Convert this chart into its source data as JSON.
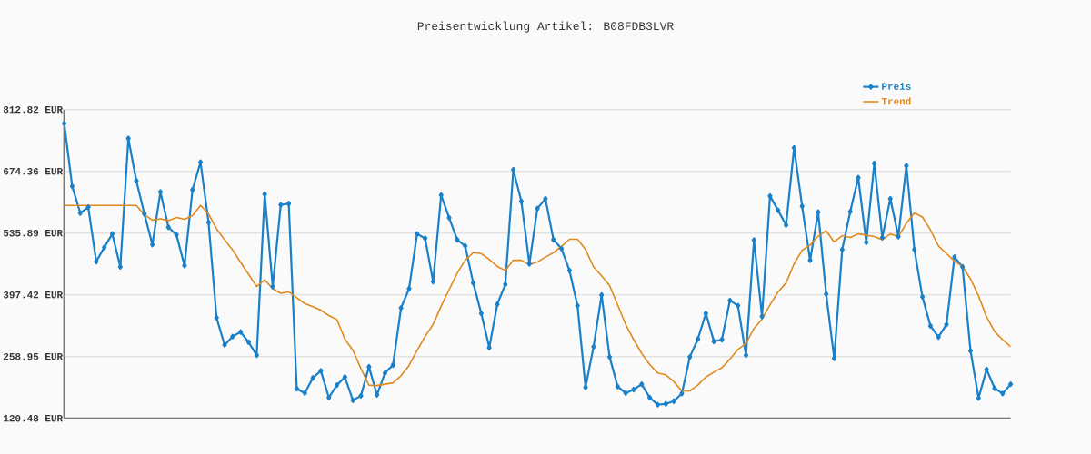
{
  "chart_data": {
    "type": "line",
    "title": "Preisentwicklung Artikel: B08FDB3LVR",
    "categories": [
      null,
      null,
      null,
      null,
      null,
      null,
      null,
      null,
      null,
      null,
      null,
      null,
      null,
      null,
      null,
      null,
      null,
      null,
      null,
      null,
      null,
      null,
      null,
      null,
      null,
      null,
      null,
      null,
      null,
      null,
      null,
      null,
      null,
      null,
      null,
      null,
      null,
      null,
      null,
      null,
      null,
      null,
      null,
      null,
      null,
      null,
      null,
      null,
      null,
      null,
      null,
      null,
      null,
      null,
      null,
      null,
      null,
      null,
      null,
      null,
      null,
      null,
      null,
      null,
      null,
      null,
      null,
      null,
      null,
      null,
      null,
      null,
      null,
      null,
      null,
      null,
      null,
      null,
      null,
      null,
      null,
      null,
      null,
      null,
      null,
      null,
      null,
      null,
      null,
      null,
      null,
      null,
      null,
      null,
      null,
      null,
      null,
      null,
      null,
      null,
      null,
      null,
      null,
      null,
      null,
      null,
      null,
      null,
      null,
      null,
      null,
      null,
      null,
      null,
      null,
      null,
      null,
      null,
      null
    ],
    "series": [
      {
        "name": "Preis",
        "color": "#1a80c8",
        "marker": "diamond",
        "values": [
          782,
          641,
          581,
          594,
          472,
          504,
          534,
          460,
          748,
          653,
          579,
          510,
          628,
          549,
          532,
          463,
          633,
          695,
          560,
          346,
          285,
          304,
          314,
          291,
          262,
          623,
          416,
          599,
          602,
          187,
          177,
          211,
          227,
          167,
          195,
          213,
          161,
          171,
          236,
          173,
          222,
          240,
          368,
          411,
          534,
          524,
          427,
          621,
          570,
          521,
          507,
          424,
          356,
          279,
          376,
          421,
          678,
          607,
          467,
          591,
          613,
          521,
          501,
          452,
          373,
          190,
          281,
          397,
          258,
          192,
          177,
          185,
          197,
          167,
          151,
          153,
          159,
          176,
          258,
          298,
          356,
          293,
          297,
          385,
          373,
          262,
          520,
          349,
          619,
          587,
          554,
          727,
          596,
          475,
          583,
          399,
          255,
          499,
          584,
          660,
          515,
          692,
          526,
          613,
          528,
          687,
          499,
          393,
          328,
          303,
          331,
          482,
          460,
          272,
          166,
          230,
          188,
          176,
          197
        ]
      },
      {
        "name": "Trend",
        "color": "#e08a1e",
        "marker": "none",
        "values": [
          598,
          598,
          598,
          598,
          598,
          598,
          598,
          598,
          598,
          598,
          577,
          565,
          568,
          564,
          571,
          567,
          575,
          598,
          579,
          545,
          521,
          498,
          470,
          443,
          416,
          431,
          411,
          401,
          404,
          391,
          378,
          371,
          363,
          351,
          342,
          298,
          273,
          232,
          195,
          194,
          197,
          200,
          216,
          239,
          273,
          304,
          331,
          372,
          409,
          446,
          475,
          492,
          490,
          477,
          461,
          452,
          475,
          475,
          465,
          471,
          482,
          492,
          506,
          522,
          522,
          499,
          460,
          440,
          418,
          375,
          331,
          297,
          266,
          241,
          222,
          218,
          203,
          182,
          182,
          195,
          213,
          224,
          234,
          253,
          275,
          288,
          322,
          343,
          375,
          404,
          424,
          467,
          497,
          509,
          529,
          541,
          516,
          530,
          526,
          534,
          531,
          528,
          521,
          534,
          528,
          558,
          581,
          572,
          543,
          507,
          490,
          473,
          461,
          433,
          395,
          348,
          315,
          297,
          281
        ]
      }
    ],
    "ylim": [
      120.48,
      812.82
    ],
    "yticks": [
      {
        "value": 120.48,
        "label": "120.48 EUR"
      },
      {
        "value": 258.95,
        "label": "258.95 EUR"
      },
      {
        "value": 397.42,
        "label": "397.42 EUR"
      },
      {
        "value": 535.89,
        "label": "535.89 EUR"
      },
      {
        "value": 674.36,
        "label": "674.36 EUR"
      },
      {
        "value": 812.82,
        "label": "812.82 EUR"
      }
    ],
    "grid": "y",
    "legend": "top right",
    "line_style": "solid"
  }
}
